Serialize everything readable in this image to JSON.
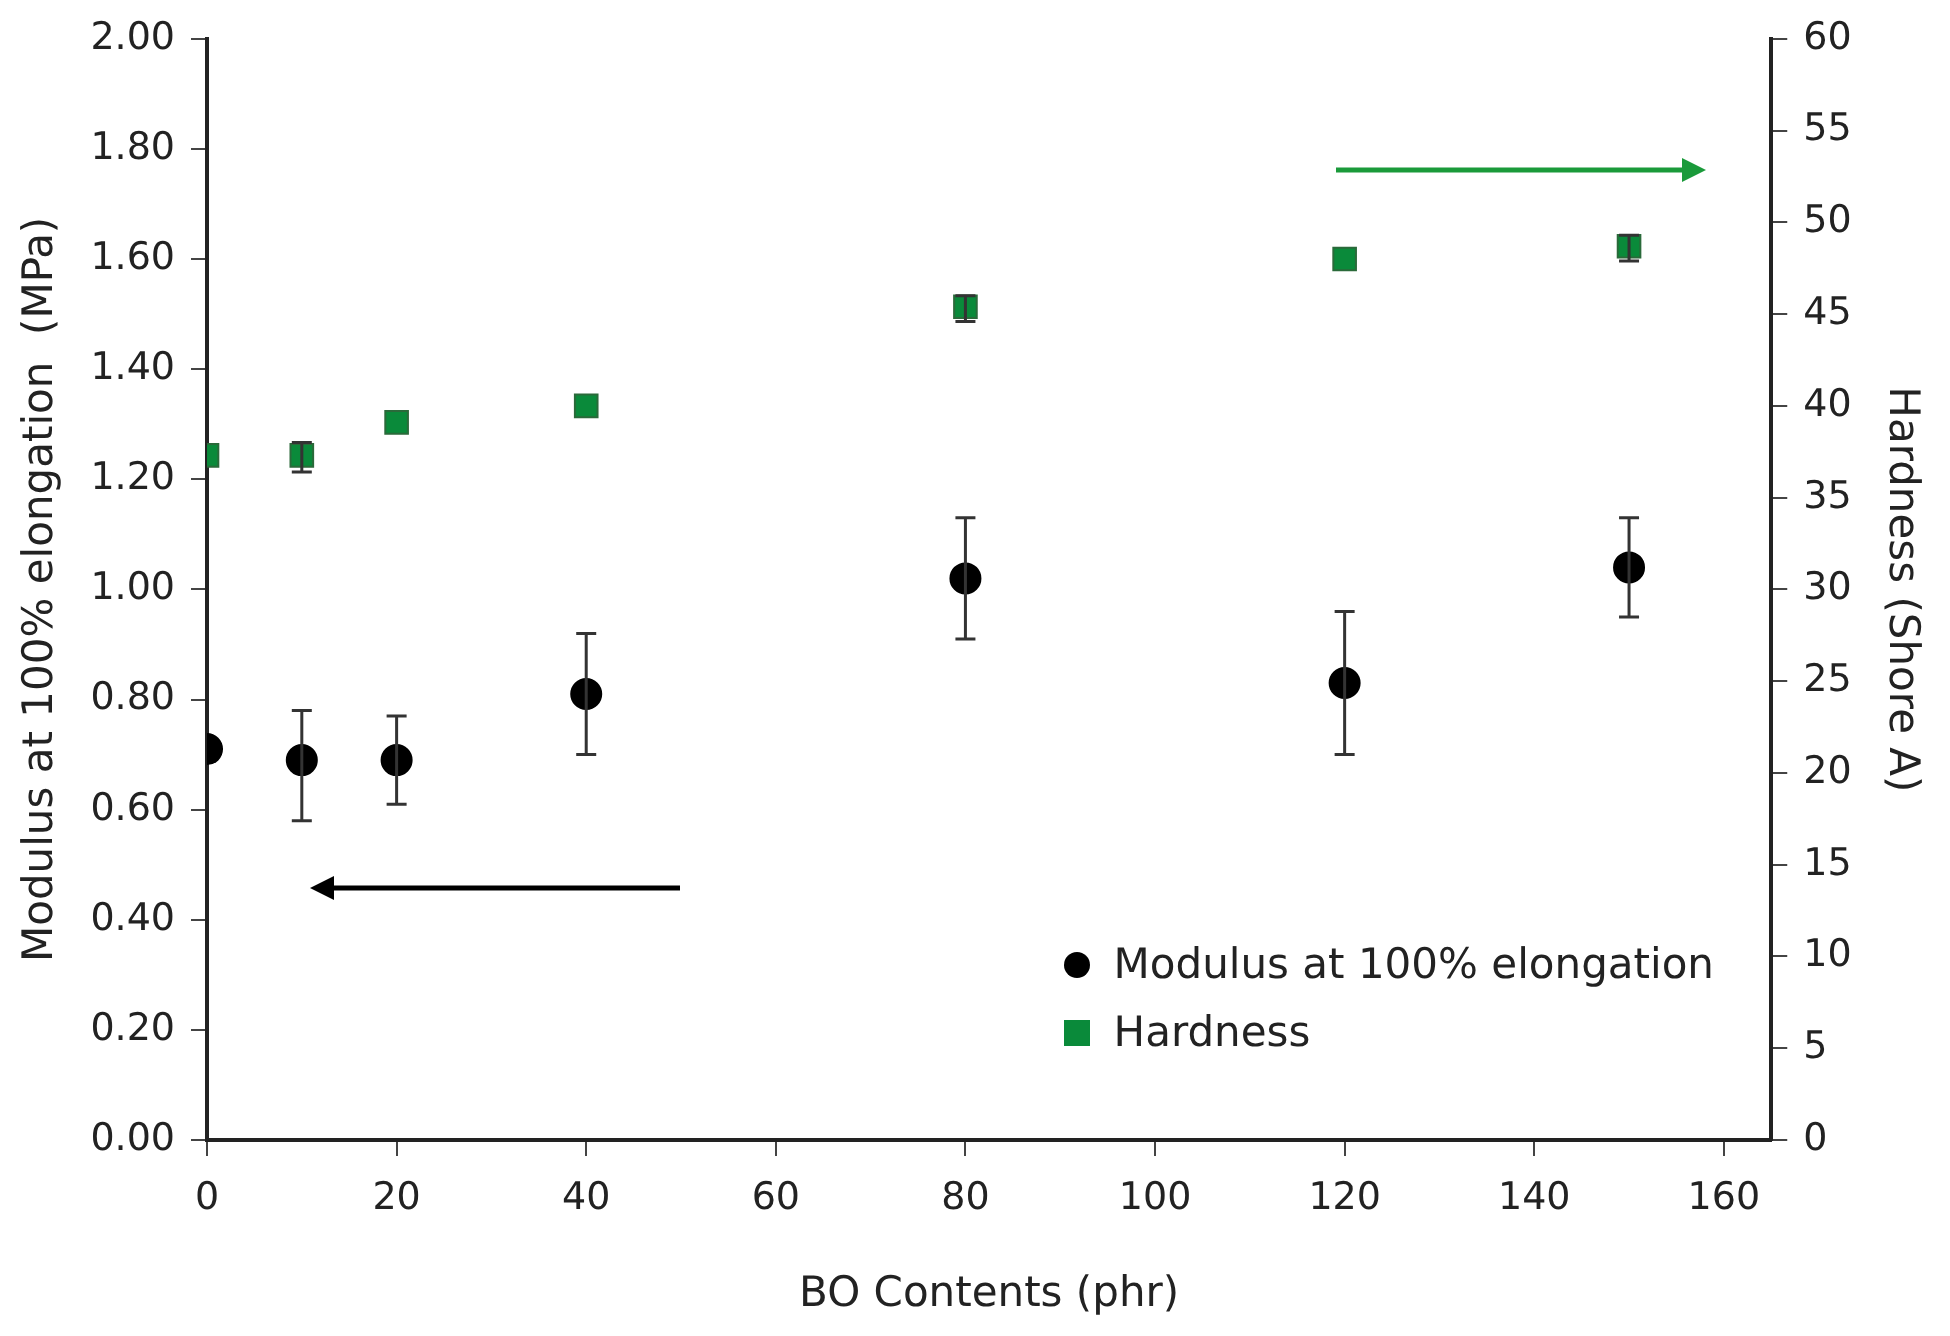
{
  "chart_data": {
    "type": "scatter",
    "xlabel": "BO Contents (phr)",
    "ylabel": "Modulus at 100% elongation  (MPa)",
    "y2label": "Hardness (Shore A)",
    "x": [
      0,
      10,
      20,
      40,
      80,
      120,
      150
    ],
    "xlim": [
      0,
      165
    ],
    "xticks": [
      0,
      20,
      40,
      60,
      80,
      100,
      120,
      140,
      160
    ],
    "ylim": [
      0,
      2
    ],
    "yticks": [
      {
        "value": 0,
        "label": "0.00"
      },
      {
        "value": 0.2,
        "label": "0.20"
      },
      {
        "value": 0.4,
        "label": "0.40"
      },
      {
        "value": 0.6,
        "label": "0.60"
      },
      {
        "value": 0.8,
        "label": "0.80"
      },
      {
        "value": 1,
        "label": "1.00"
      },
      {
        "value": 1.2,
        "label": "1.20"
      },
      {
        "value": 1.4,
        "label": "1.40"
      },
      {
        "value": 1.6,
        "label": "1.60"
      },
      {
        "value": 1.8,
        "label": "1.80"
      },
      {
        "value": 2,
        "label": "2.00"
      }
    ],
    "y2lim": [
      0,
      60
    ],
    "y2ticks": [
      0,
      5,
      10,
      15,
      20,
      25,
      30,
      35,
      40,
      45,
      50,
      55,
      60
    ],
    "grid": false,
    "legend": "bottom right",
    "series": [
      {
        "name": "Modulus at 100% elongation",
        "color": "#000000",
        "marker": "circle",
        "values": [
          0.71,
          0.69,
          0.69,
          0.81,
          1.02,
          0.83,
          1.04
        ],
        "errors": [
          null,
          [
            0.58,
            0.78
          ],
          [
            0.61,
            0.77
          ],
          [
            0.7,
            0.92
          ],
          [
            0.91,
            1.13
          ],
          [
            0.7,
            0.96
          ],
          [
            0.95,
            1.13
          ]
        ]
      },
      {
        "name": "Hardness",
        "color": "#0a8a3a",
        "marker": "square",
        "axis": "y2",
        "values": [
          37.3,
          37.3,
          39.1,
          40,
          45.4,
          48,
          48.7
        ],
        "errors": [
          null,
          [
            36.4,
            38
          ],
          null,
          null,
          [
            44.6,
            46
          ],
          null,
          [
            47.9,
            49.3
          ]
        ]
      }
    ]
  }
}
